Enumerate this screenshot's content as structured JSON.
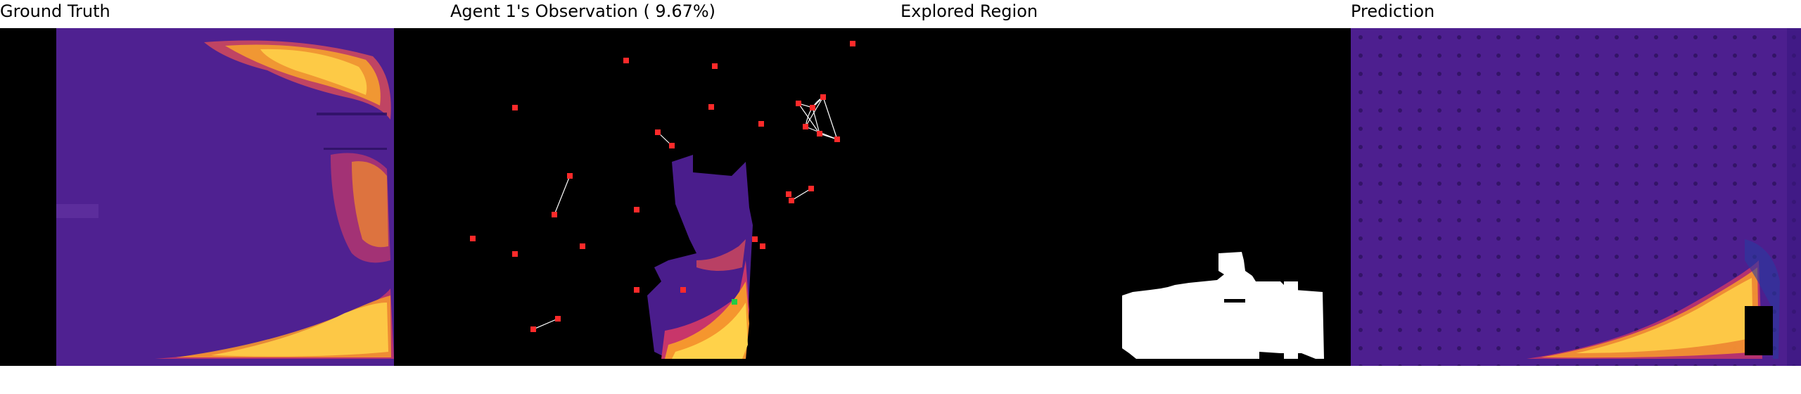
{
  "panels": {
    "ground_truth": {
      "title": "Ground Truth"
    },
    "observation": {
      "title": "Agent 1's Observation ( 9.67%)"
    },
    "explored": {
      "title": "Explored Region"
    },
    "prediction": {
      "title": "Prediction"
    }
  },
  "colors": {
    "background": "#000000",
    "heat_low": "#4b1d8f",
    "heat_mid": "#c2306a",
    "heat_high": "#ffc12e",
    "agent_marker": "#ff2a2a",
    "self_marker": "#22cc44",
    "link_line": "#ffffff",
    "explored_fill": "#ffffff"
  },
  "icons": {
    "agent": "red-square-marker",
    "self": "green-square-marker"
  }
}
